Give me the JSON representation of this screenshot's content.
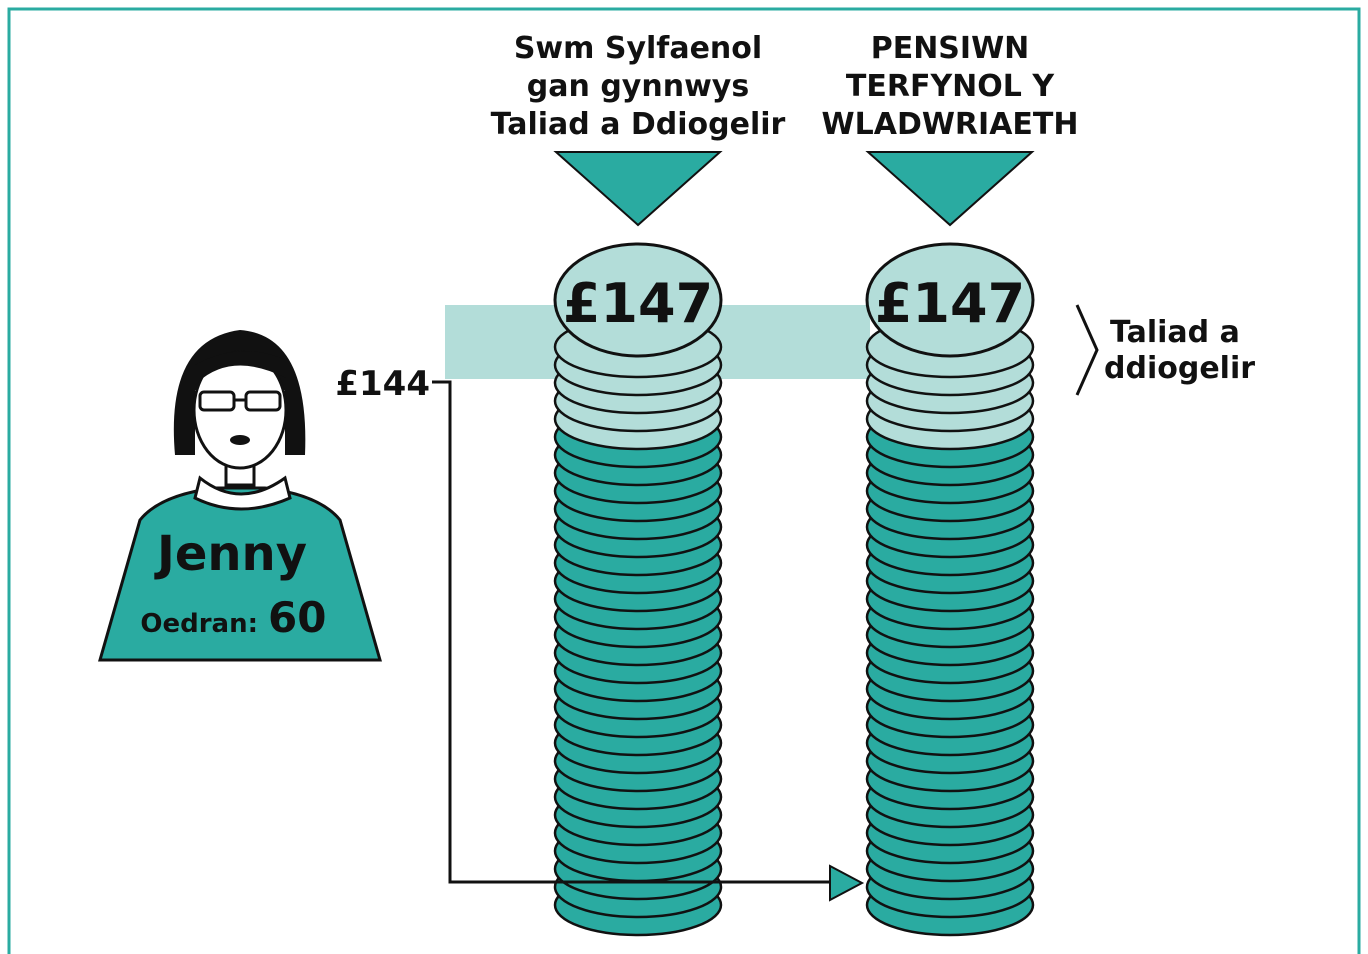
{
  "columns": [
    {
      "title_lines": [
        "Swm Sylfaenol",
        "gan gynnwys",
        "Taliad a Ddiogelir"
      ],
      "top_label": "£147"
    },
    {
      "title_lines": [
        "PENSIWN",
        "TERFYNOL Y",
        "WLADWRIAETH"
      ],
      "top_label": "£147"
    }
  ],
  "marker_label": "£144",
  "bracket_label_lines": [
    "Taliad a",
    "ddiogelir"
  ],
  "person": {
    "name": "Jenny",
    "age_label": "Oedran:",
    "age": 60
  }
}
